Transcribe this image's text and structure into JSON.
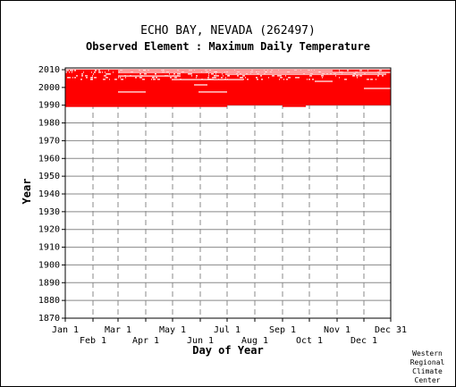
{
  "chart_data": {
    "type": "heatmap",
    "title": "ECHO BAY, NEVADA   (262497)",
    "subtitle": "Observed Element : Maximum Daily Temperature",
    "xlabel": "Day of Year",
    "ylabel": "Year",
    "ylim": [
      1870,
      2011
    ],
    "xlim": [
      1,
      365
    ],
    "y_ticks": [
      1870,
      1880,
      1890,
      1900,
      1910,
      1920,
      1930,
      1940,
      1950,
      1960,
      1970,
      1980,
      1990,
      2000,
      2010
    ],
    "x_ticks_top": [
      {
        "label": "Jan 1",
        "day": 1
      },
      {
        "label": "Mar 1",
        "day": 60
      },
      {
        "label": "May 1",
        "day": 121
      },
      {
        "label": "Jul 1",
        "day": 182
      },
      {
        "label": "Sep 1",
        "day": 244
      },
      {
        "label": "Nov 1",
        "day": 305
      },
      {
        "label": "Dec 31",
        "day": 365
      }
    ],
    "x_ticks_bottom": [
      {
        "label": "Feb 1",
        "day": 32
      },
      {
        "label": "Apr 1",
        "day": 91
      },
      {
        "label": "Jun 1",
        "day": 152
      },
      {
        "label": "Aug 1",
        "day": 213
      },
      {
        "label": "Oct 1",
        "day": 274
      },
      {
        "label": "Dec 1",
        "day": 335
      }
    ],
    "grid": true,
    "data_color": "#ff0000",
    "observed_range": {
      "year_start": 1989,
      "year_end": 2010
    },
    "gaps": [
      {
        "year": 1997,
        "day_start": 60,
        "day_end": 91
      },
      {
        "year": 1997,
        "day_start": 150,
        "day_end": 182
      },
      {
        "year": 2001,
        "day_start": 145,
        "day_end": 160
      },
      {
        "year": 2004,
        "day_start": 120,
        "day_end": 200
      },
      {
        "year": 2006,
        "day_start": 60,
        "day_end": 130
      },
      {
        "year": 2007,
        "day_start": 180,
        "day_end": 360
      },
      {
        "year": 2008,
        "day_start": 60,
        "day_end": 365
      },
      {
        "year": 2009,
        "day_start": 60,
        "day_end": 300
      },
      {
        "year": 2010,
        "day_start": 1,
        "day_end": 365
      },
      {
        "year": 1999,
        "day_start": 335,
        "day_end": 365
      },
      {
        "year": 2003,
        "day_start": 280,
        "day_end": 300
      }
    ],
    "partial_years": [
      {
        "year": 1989,
        "day_start": 1,
        "day_end": 182
      },
      {
        "year": 1989,
        "day_start": 244,
        "day_end": 270
      }
    ]
  },
  "credit": [
    "Western",
    "Regional",
    "Climate",
    "Center"
  ]
}
